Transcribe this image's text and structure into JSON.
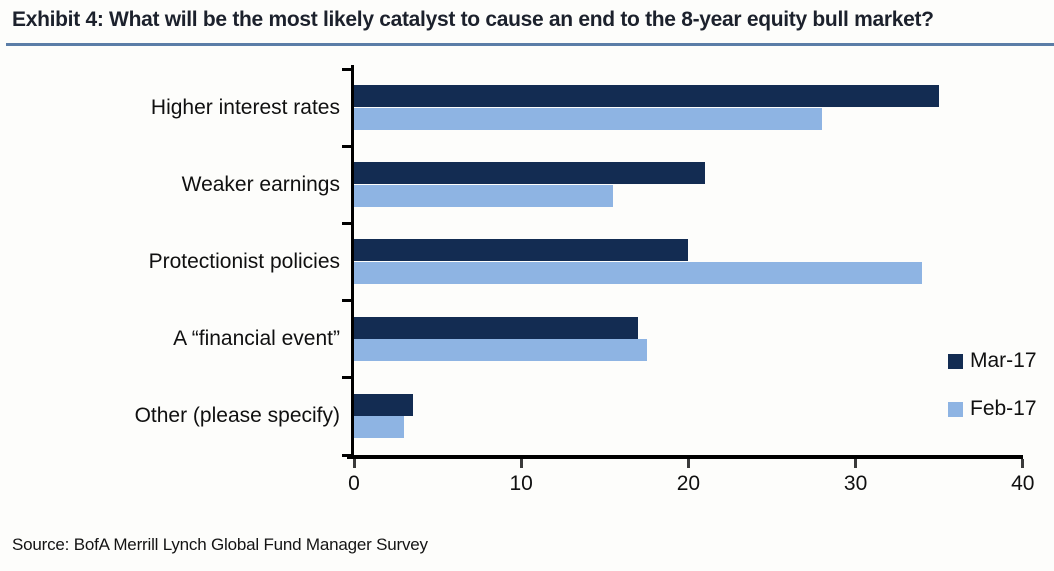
{
  "title": "Exhibit 4: What will be the most likely catalyst to cause an end to the 8-year equity bull market?",
  "source": "Source: BofA Merrill Lynch Global Fund Manager Survey",
  "colors": {
    "mar_navy": "#132c52",
    "feb_light_blue": "#8eb4e3",
    "title_rule_blue": "#5b7da7",
    "axis_black": "#000000"
  },
  "legend": {
    "position": "right-middle",
    "items": [
      {
        "label": "Mar-17",
        "color": "#132c52"
      },
      {
        "label": "Feb-17",
        "color": "#8eb4e3"
      }
    ]
  },
  "chart_data": {
    "type": "bar",
    "orientation": "horizontal",
    "title": "Exhibit 4: What will be the most likely catalyst to cause an end to the 8-year equity bull market?",
    "categories": [
      "Higher interest rates",
      "Weaker earnings",
      "Protectionist policies",
      "A “financial event”",
      "Other (please specify)"
    ],
    "series": [
      {
        "name": "Mar-17",
        "color": "#132c52",
        "values": [
          35,
          21,
          20,
          17,
          3.5
        ]
      },
      {
        "name": "Feb-17",
        "color": "#8eb4e3",
        "values": [
          28,
          15.5,
          34,
          17.5,
          3
        ]
      }
    ],
    "xlabel": "",
    "ylabel": "",
    "xlim": [
      0,
      40
    ],
    "xticks": [
      0,
      10,
      20,
      30,
      40
    ],
    "grid": false,
    "legend_position": "right"
  }
}
